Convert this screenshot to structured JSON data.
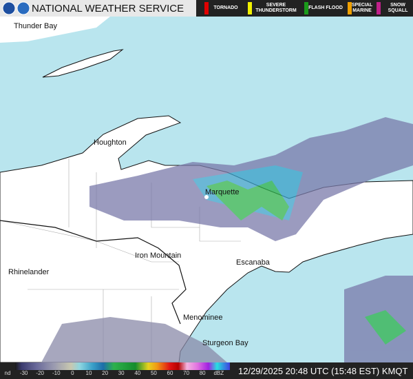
{
  "header": {
    "title": "NATIONAL WEATHER SERVICE"
  },
  "warnings": [
    "TORNADO",
    "SEVERE THUNDERSTORM",
    "FLASH FLOOD",
    "SPECIAL MARINE",
    "SNOW SQUALL"
  ],
  "cities": [
    "Thunder Bay",
    "Houghton",
    "Marquette",
    "Iron Mountain",
    "Escanaba",
    "Rhinelander",
    "Menominee",
    "Sturgeon Bay"
  ],
  "colorbar": {
    "labels": [
      "nd",
      "-30",
      "-20",
      "-10",
      "0",
      "10",
      "20",
      "30",
      "40",
      "50",
      "60",
      "70",
      "80",
      "dBZ"
    ]
  },
  "timestamp": "12/29/2025 20:48 UTC (15:48 EST) KMQT"
}
